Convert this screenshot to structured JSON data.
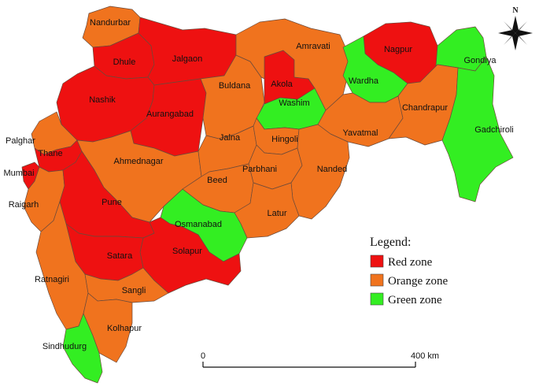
{
  "colors": {
    "red": "#ee1111",
    "orange": "#f0731e",
    "green": "#33ee22"
  },
  "legend": {
    "title": "Legend:",
    "items": [
      {
        "label": "Red zone",
        "color": "#ee1111"
      },
      {
        "label": "Orange zone",
        "color": "#f0731e"
      },
      {
        "label": "Green zone",
        "color": "#33ee22"
      }
    ]
  },
  "scale_bar": {
    "start": "0",
    "end": "400 km"
  },
  "compass": {
    "north": "N"
  },
  "districts": [
    {
      "name": "Nandurbar",
      "zone": "orange"
    },
    {
      "name": "Dhule",
      "zone": "red"
    },
    {
      "name": "Jalgaon",
      "zone": "red"
    },
    {
      "name": "Nashik",
      "zone": "red"
    },
    {
      "name": "Aurangabad",
      "zone": "red"
    },
    {
      "name": "Buldana",
      "zone": "orange"
    },
    {
      "name": "Akola",
      "zone": "red"
    },
    {
      "name": "Amravati",
      "zone": "orange"
    },
    {
      "name": "Washim",
      "zone": "green"
    },
    {
      "name": "Nagpur",
      "zone": "red"
    },
    {
      "name": "Wardha",
      "zone": "green"
    },
    {
      "name": "Gondiya",
      "zone": "green"
    },
    {
      "name": "Yavatmal",
      "zone": "orange"
    },
    {
      "name": "Chandrapur",
      "zone": "orange"
    },
    {
      "name": "Gadchiroli",
      "zone": "green"
    },
    {
      "name": "Palghar",
      "zone": "orange"
    },
    {
      "name": "Thane",
      "zone": "red"
    },
    {
      "name": "Mumbai",
      "zone": "red"
    },
    {
      "name": "Ahmednagar",
      "zone": "orange"
    },
    {
      "name": "Jalna",
      "zone": "orange"
    },
    {
      "name": "Hingoli",
      "zone": "orange"
    },
    {
      "name": "Parbhani",
      "zone": "orange"
    },
    {
      "name": "Nanded",
      "zone": "orange"
    },
    {
      "name": "Beed",
      "zone": "orange"
    },
    {
      "name": "Raigarh",
      "zone": "orange"
    },
    {
      "name": "Pune",
      "zone": "red"
    },
    {
      "name": "Latur",
      "zone": "orange"
    },
    {
      "name": "Osmanabad",
      "zone": "green"
    },
    {
      "name": "Solapur",
      "zone": "red"
    },
    {
      "name": "Satara",
      "zone": "red"
    },
    {
      "name": "Ratnagiri",
      "zone": "orange"
    },
    {
      "name": "Sangli",
      "zone": "orange"
    },
    {
      "name": "Kolhapur",
      "zone": "orange"
    },
    {
      "name": "Sindhudurg",
      "zone": "green"
    }
  ]
}
